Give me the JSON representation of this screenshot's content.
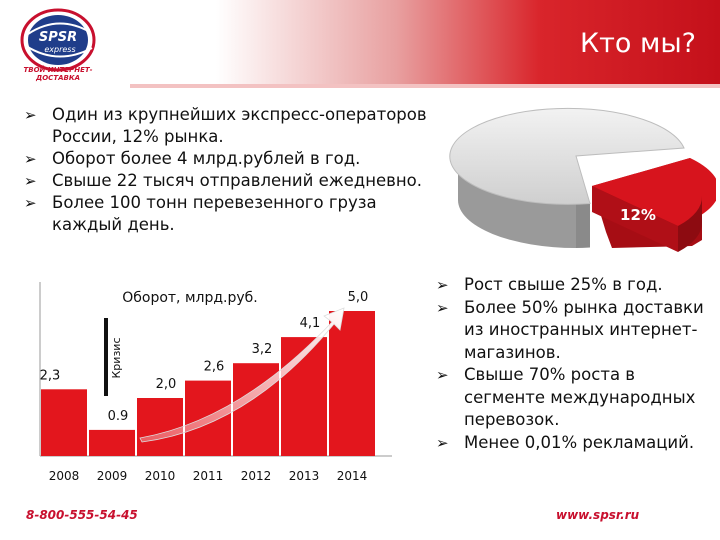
{
  "header": {
    "title": "Кто мы?",
    "logo_top": "SPSR",
    "logo_bottom": "express",
    "logo_caption": "ТВОЙ ИНТЕРНЕТ-ДОСТАВКА"
  },
  "left_bullets": [
    "Один из крупнейших экспресс-операторов России, 12% рынка.",
    "Оборот более 4 млрд.рублей в год.",
    "Свыше 22 тысяч отправлений ежедневно.",
    "Более 100 тонн перевезенного груза каждый день."
  ],
  "right_bullets": [
    "Рост свыше 25% в год.",
    "Более 50% рынка доставки из иностранных интернет-магазинов.",
    "Свыше 70% роста в сегменте международных перевозок.",
    "Менее 0,01% рекламаций."
  ],
  "pie": {
    "label": "12%",
    "share": 12
  },
  "chart_data": {
    "type": "bar",
    "title": "Оборот, млрд.руб.",
    "categories": [
      "2008",
      "2009",
      "2010",
      "2011",
      "2012",
      "2013",
      "2014"
    ],
    "values": [
      2.3,
      0.9,
      2.0,
      2.6,
      3.2,
      4.1,
      5.0
    ],
    "value_labels": [
      "2,3",
      "0.9",
      "2,0",
      "2,6",
      "3,2",
      "4,1",
      "5,0"
    ],
    "annotation": "Кризис",
    "ylim": [
      0,
      6
    ],
    "bar_color": "#e3161d"
  },
  "footer": {
    "phone": "8-800-555-54-45",
    "url": "www.spsr.ru"
  },
  "colors": {
    "brand_red": "#c8102e",
    "banner": "#d7141d"
  }
}
